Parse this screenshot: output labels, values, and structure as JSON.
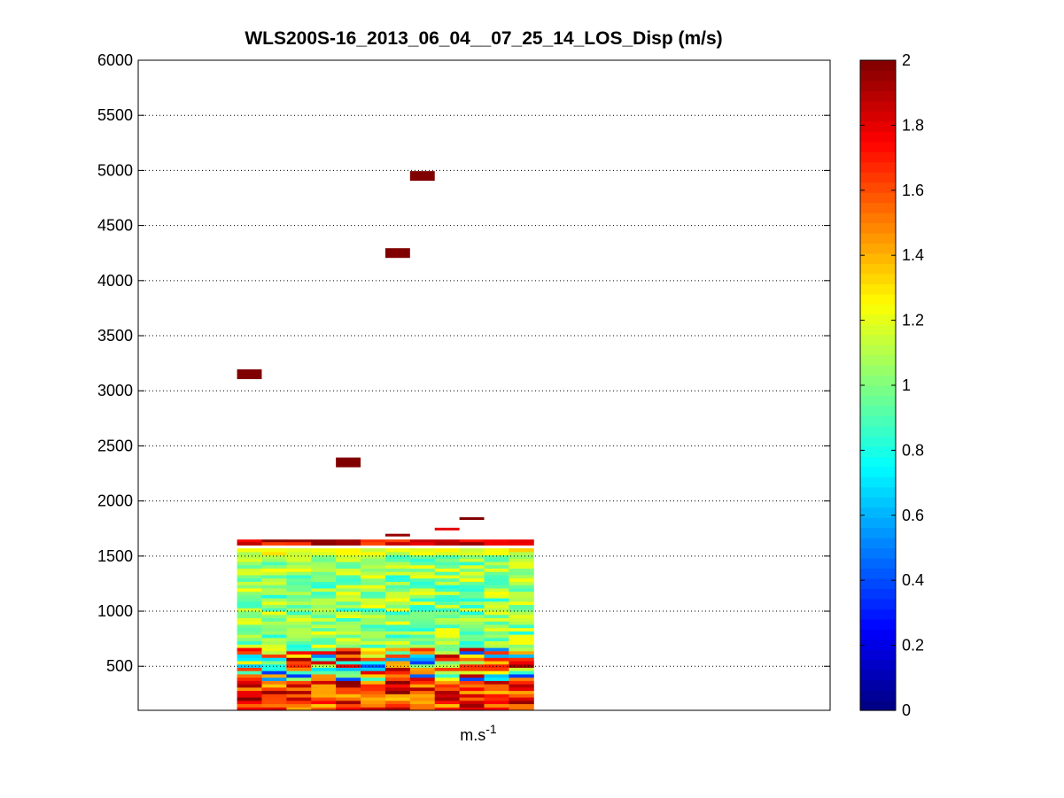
{
  "chart_data": {
    "type": "heatmap",
    "title": "WLS200S-16_2013_06_04__07_25_14_LOS_Disp (m/s)",
    "xlabel": "m.s",
    "xlabel_superscript": "-1",
    "ylabel": "",
    "ylim": [
      100,
      6000
    ],
    "yticks": [
      500,
      1000,
      1500,
      2000,
      2500,
      3000,
      3500,
      4000,
      4500,
      5000,
      5500,
      6000
    ],
    "grid": "horizontal dotted",
    "colormap": "jet",
    "colorbar": {
      "range": [
        0,
        2
      ],
      "ticks": [
        "0",
        "0.2",
        "0.4",
        "0.6",
        "0.8",
        "1",
        "1.2",
        "1.4",
        "1.6",
        "1.8",
        "2"
      ]
    },
    "x_columns": 18,
    "x_data_columns": [
      5,
      17
    ],
    "x_extent": [
      0,
      28
    ],
    "dense_region_altitude": [
      100,
      1650
    ],
    "outliers": [
      {
        "column": 5,
        "altitude": 3150,
        "value": 2
      },
      {
        "column": 9,
        "altitude": 2350,
        "value": 2
      },
      {
        "column": 11,
        "altitude": 4250,
        "value": 2
      },
      {
        "column": 12,
        "altitude": 4950,
        "value": 2
      },
      {
        "column": 11,
        "altitude": 1690,
        "value": 1.95
      },
      {
        "column": 13,
        "altitude": 1745,
        "value": 1.8
      },
      {
        "column": 14,
        "altitude": 1840,
        "value": 2
      }
    ]
  }
}
